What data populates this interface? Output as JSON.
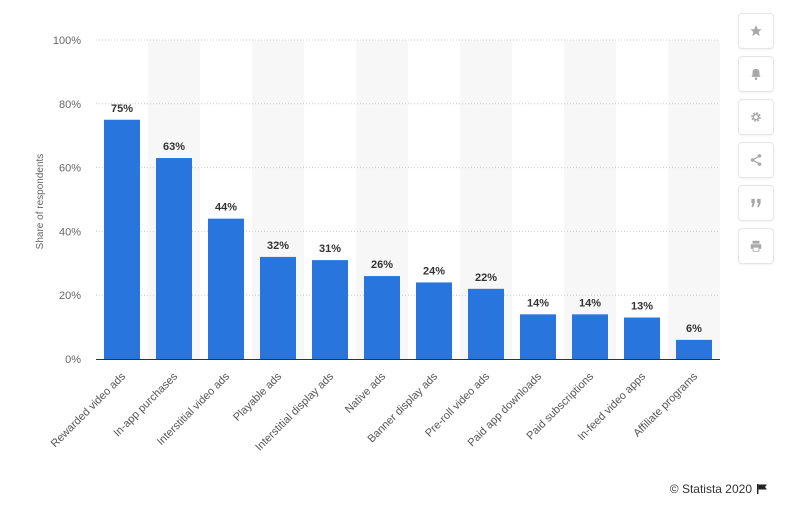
{
  "chart_data": {
    "type": "bar",
    "categories": [
      "Rewarded video ads",
      "In-app purchases",
      "Interstitial video ads",
      "Playable ads",
      "Interstitial display ads",
      "Native ads",
      "Banner display ads",
      "Pre-roll video ads",
      "Paid app downloads",
      "Paid subscriptions",
      "In-feed video apps",
      "Affiliate programs"
    ],
    "values": [
      75,
      63,
      44,
      32,
      31,
      26,
      24,
      22,
      14,
      14,
      13,
      6
    ],
    "data_labels": [
      "75%",
      "63%",
      "44%",
      "32%",
      "31%",
      "26%",
      "24%",
      "22%",
      "14%",
      "14%",
      "13%",
      "6%"
    ],
    "ylabel": "Share of respondents",
    "ylim": [
      0,
      100
    ],
    "y_ticks": [
      0,
      20,
      40,
      60,
      80,
      100
    ],
    "y_tick_labels": [
      "0%",
      "20%",
      "40%",
      "60%",
      "80%",
      "100%"
    ],
    "bar_color": "#2876dd",
    "grid": true,
    "grid_style": "dotted"
  },
  "credit": "© Statista 2020",
  "sidebar": {
    "icons": [
      "star-icon",
      "bell-icon",
      "gear-icon",
      "share-icon",
      "quote-icon",
      "print-icon"
    ]
  }
}
